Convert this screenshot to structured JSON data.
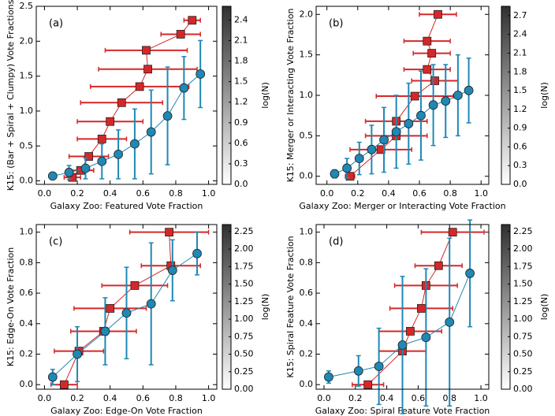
{
  "chart_data": [
    {
      "type": "scatter",
      "label": "(a)",
      "xlabel": "Galaxy Zoo: Featured Vote Fraction",
      "ylabel": "K15: (Bar + Spiral + Clumpy) Vote Fractions",
      "xlim": [
        -0.05,
        1.05
      ],
      "xticks": [
        {
          "value": 0,
          "label": "0.0"
        },
        0.2,
        0.4,
        0.6,
        0.8,
        {
          "value": 1,
          "label": "1.0"
        }
      ],
      "ylim": [
        -0.05,
        2.5
      ],
      "yticks": [
        {
          "value": 0,
          "label": "0.0"
        },
        0.5,
        {
          "value": 1,
          "label": "1.0"
        },
        1.5,
        {
          "value": 2,
          "label": "2.0"
        },
        2.5
      ],
      "colorbar": {
        "label": "log(N)",
        "lim": [
          0,
          2.6
        ],
        "ticks": [
          {
            "value": 0,
            "label": "0.0"
          },
          0.3,
          0.6,
          0.9,
          1.2,
          1.5,
          1.8,
          2.1,
          2.4
        ],
        "colors": [
          "#ffffff",
          "#303030"
        ]
      },
      "series": [
        {
          "color": "#d62728",
          "marker": "square",
          "x": [
            0.17,
            0.22,
            0.27,
            0.35,
            0.4,
            0.47,
            0.58,
            0.63,
            0.62,
            0.83,
            0.9
          ],
          "values": [
            0.05,
            0.15,
            0.35,
            0.6,
            0.85,
            1.12,
            1.35,
            1.6,
            1.87,
            2.1,
            2.3
          ],
          "xerr": [
            0.05,
            0.08,
            0.12,
            0.15,
            0.2,
            0.25,
            0.3,
            0.3,
            0.25,
            0.12,
            0.05
          ]
        },
        {
          "color": "#1f88b4",
          "marker": "circle",
          "x": [
            0.05,
            0.15,
            0.25,
            0.35,
            0.45,
            0.55,
            0.65,
            0.75,
            0.85,
            0.95
          ],
          "values": [
            0.07,
            0.12,
            0.18,
            0.28,
            0.38,
            0.53,
            0.7,
            0.93,
            1.33,
            1.53
          ],
          "yerr": [
            0.05,
            0.1,
            0.15,
            0.25,
            0.35,
            0.5,
            0.6,
            0.7,
            0.45,
            0.48
          ]
        }
      ]
    },
    {
      "type": "scatter",
      "label": "(b)",
      "xlabel": "Galaxy Zoo: Merger or Interacting Vote Fraction",
      "ylabel": "K15: Merger or Interacting Vote Fraction",
      "xlim": [
        -0.07,
        1.05
      ],
      "xticks": [
        {
          "value": 0,
          "label": "0.0"
        },
        0.2,
        0.4,
        0.6,
        0.8,
        {
          "value": 1,
          "label": "1.0"
        }
      ],
      "ylim": [
        -0.1,
        2.1
      ],
      "yticks": [
        {
          "value": 0,
          "label": "0.0"
        },
        0.5,
        {
          "value": 1,
          "label": "1.0"
        },
        1.5,
        {
          "value": 2,
          "label": "2.0"
        }
      ],
      "colorbar": {
        "label": "log(N)",
        "lim": [
          0,
          2.85
        ],
        "ticks": [
          {
            "value": 0,
            "label": "0.0"
          },
          0.3,
          0.6,
          0.9,
          1.2,
          1.5,
          1.8,
          2.1,
          2.4,
          2.7
        ],
        "colors": [
          "#ffffff",
          "#303030"
        ]
      },
      "series": [
        {
          "color": "#d62728",
          "marker": "square",
          "x": [
            0.15,
            0.35,
            0.45,
            0.45,
            0.57,
            0.7,
            0.65,
            0.68,
            0.65,
            0.72
          ],
          "values": [
            0,
            0.33,
            0.5,
            0.68,
            0.99,
            1.18,
            1.32,
            1.52,
            1.67,
            2.0
          ],
          "xerr": [
            0.03,
            0.2,
            0.2,
            0.2,
            0.25,
            0.15,
            0.15,
            0.12,
            0.15,
            0.12
          ]
        },
        {
          "color": "#1f88b4",
          "marker": "circle",
          "x": [
            0.05,
            0.13,
            0.21,
            0.29,
            0.37,
            0.45,
            0.53,
            0.61,
            0.69,
            0.77,
            0.85,
            0.92
          ],
          "values": [
            0.03,
            0.1,
            0.22,
            0.33,
            0.45,
            0.55,
            0.65,
            0.75,
            0.88,
            0.93,
            1.0,
            1.06
          ],
          "yerr": [
            0.05,
            0.12,
            0.2,
            0.3,
            0.4,
            0.45,
            0.5,
            0.55,
            0.5,
            0.45,
            0.5,
            0.4
          ]
        }
      ]
    },
    {
      "type": "scatter",
      "label": "(c)",
      "xlabel": "Galaxy Zoo: Edge-On Vote Fraction",
      "ylabel": "K15: Edge-On Vote Fraction",
      "xlim": [
        -0.05,
        1.05
      ],
      "xticks": [
        {
          "value": 0,
          "label": "0.0"
        },
        0.2,
        0.4,
        0.6,
        0.8,
        {
          "value": 1,
          "label": "1.0"
        }
      ],
      "ylim": [
        -0.03,
        1.05
      ],
      "yticks": [
        {
          "value": 0,
          "label": "0.0"
        },
        0.2,
        0.4,
        0.6,
        0.8,
        {
          "value": 1,
          "label": "1.0"
        }
      ],
      "colorbar": {
        "label": "log(N)",
        "lim": [
          0,
          2.35
        ],
        "ticks": [
          {
            "value": 0,
            "label": "0.00"
          },
          0.25,
          {
            "value": 0.5,
            "label": "0.50"
          },
          0.75,
          {
            "value": 1,
            "label": "1.00"
          },
          1.25,
          {
            "value": 1.5,
            "label": "1.50"
          },
          1.75,
          {
            "value": 2,
            "label": "2.00"
          },
          2.25
        ],
        "colors": [
          "#ffffff",
          "#303030"
        ]
      },
      "series": [
        {
          "color": "#d62728",
          "marker": "square",
          "x": [
            0.12,
            0.21,
            0.36,
            0.4,
            0.55,
            0.77,
            0.76
          ],
          "values": [
            0,
            0.22,
            0.35,
            0.5,
            0.65,
            0.78,
            1.0
          ],
          "xerr": [
            0.08,
            0.15,
            0.2,
            0.22,
            0.2,
            0.18,
            0.24
          ]
        },
        {
          "color": "#1f88b4",
          "marker": "circle",
          "x": [
            0.05,
            0.2,
            0.37,
            0.5,
            0.65,
            0.78,
            0.93
          ],
          "values": [
            0.05,
            0.2,
            0.35,
            0.47,
            0.53,
            0.75,
            0.86
          ],
          "yerr": [
            0.05,
            0.18,
            0.22,
            0.3,
            0.4,
            0.2,
            0.14
          ]
        }
      ]
    },
    {
      "type": "scatter",
      "label": "(d)",
      "xlabel": "Galaxy Zoo: Spiral Feature Vote Fraction",
      "ylabel": "K15: Spiral Feature Vote Fraction",
      "xlim": [
        -0.05,
        1.05
      ],
      "xticks": [
        {
          "value": 0,
          "label": "0.0"
        },
        0.2,
        0.4,
        0.6,
        0.8,
        {
          "value": 1,
          "label": "1.0"
        }
      ],
      "ylim": [
        -0.03,
        1.05
      ],
      "yticks": [
        {
          "value": 0,
          "label": "0.0"
        },
        0.2,
        0.4,
        0.6,
        0.8,
        {
          "value": 1,
          "label": "1.0"
        }
      ],
      "colorbar": {
        "label": "log(N)",
        "lim": [
          0,
          2.35
        ],
        "ticks": [
          {
            "value": 0,
            "label": "0.00"
          },
          0.25,
          {
            "value": 0.5,
            "label": "0.50"
          },
          0.75,
          {
            "value": 1,
            "label": "1.00"
          },
          1.25,
          {
            "value": 1.5,
            "label": "1.50"
          },
          1.75,
          {
            "value": 2,
            "label": "2.00"
          },
          2.25
        ],
        "colors": [
          "#ffffff",
          "#303030"
        ]
      },
      "series": [
        {
          "color": "#d62728",
          "marker": "square",
          "x": [
            0.28,
            0.5,
            0.55,
            0.62,
            0.65,
            0.73,
            0.82
          ],
          "values": [
            0,
            0.22,
            0.35,
            0.5,
            0.65,
            0.78,
            1.0
          ],
          "xerr": [
            0.1,
            0.15,
            0.2,
            0.2,
            0.2,
            0.15,
            0.2
          ]
        },
        {
          "color": "#1f88b4",
          "marker": "circle",
          "x": [
            0.03,
            0.22,
            0.35,
            0.5,
            0.65,
            0.8,
            0.93
          ],
          "values": [
            0.05,
            0.09,
            0.12,
            0.26,
            0.31,
            0.41,
            0.73
          ],
          "yerr": [
            0.04,
            0.1,
            0.25,
            0.45,
            0.45,
            0.55,
            0.35
          ]
        }
      ]
    }
  ]
}
